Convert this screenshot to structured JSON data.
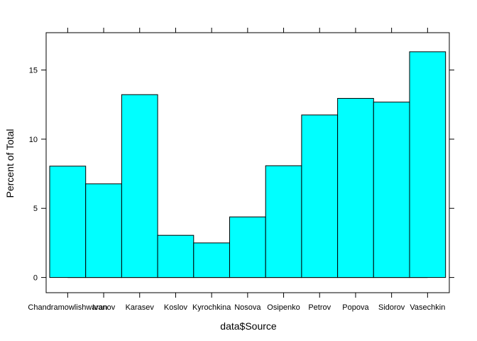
{
  "chart_data": {
    "type": "bar",
    "xlabel": "data$Source",
    "ylabel": "Percent of Total",
    "categories": [
      "Chandramowlishwaran",
      "Ivanov",
      "Karasev",
      "Koslov",
      "Kyrochkina",
      "Nosova",
      "Osipenko",
      "Petrov",
      "Popova",
      "Sidorov",
      "Vasechkin"
    ],
    "values": [
      8.05,
      6.77,
      13.22,
      3.05,
      2.5,
      4.38,
      8.08,
      11.75,
      12.95,
      12.68,
      16.32
    ],
    "ylim": [
      -1.1,
      17.7
    ],
    "yticks": [
      "0",
      "5",
      "10",
      "15"
    ],
    "grid": false,
    "bar_color": "#00ffff",
    "border_color": "#000000"
  }
}
